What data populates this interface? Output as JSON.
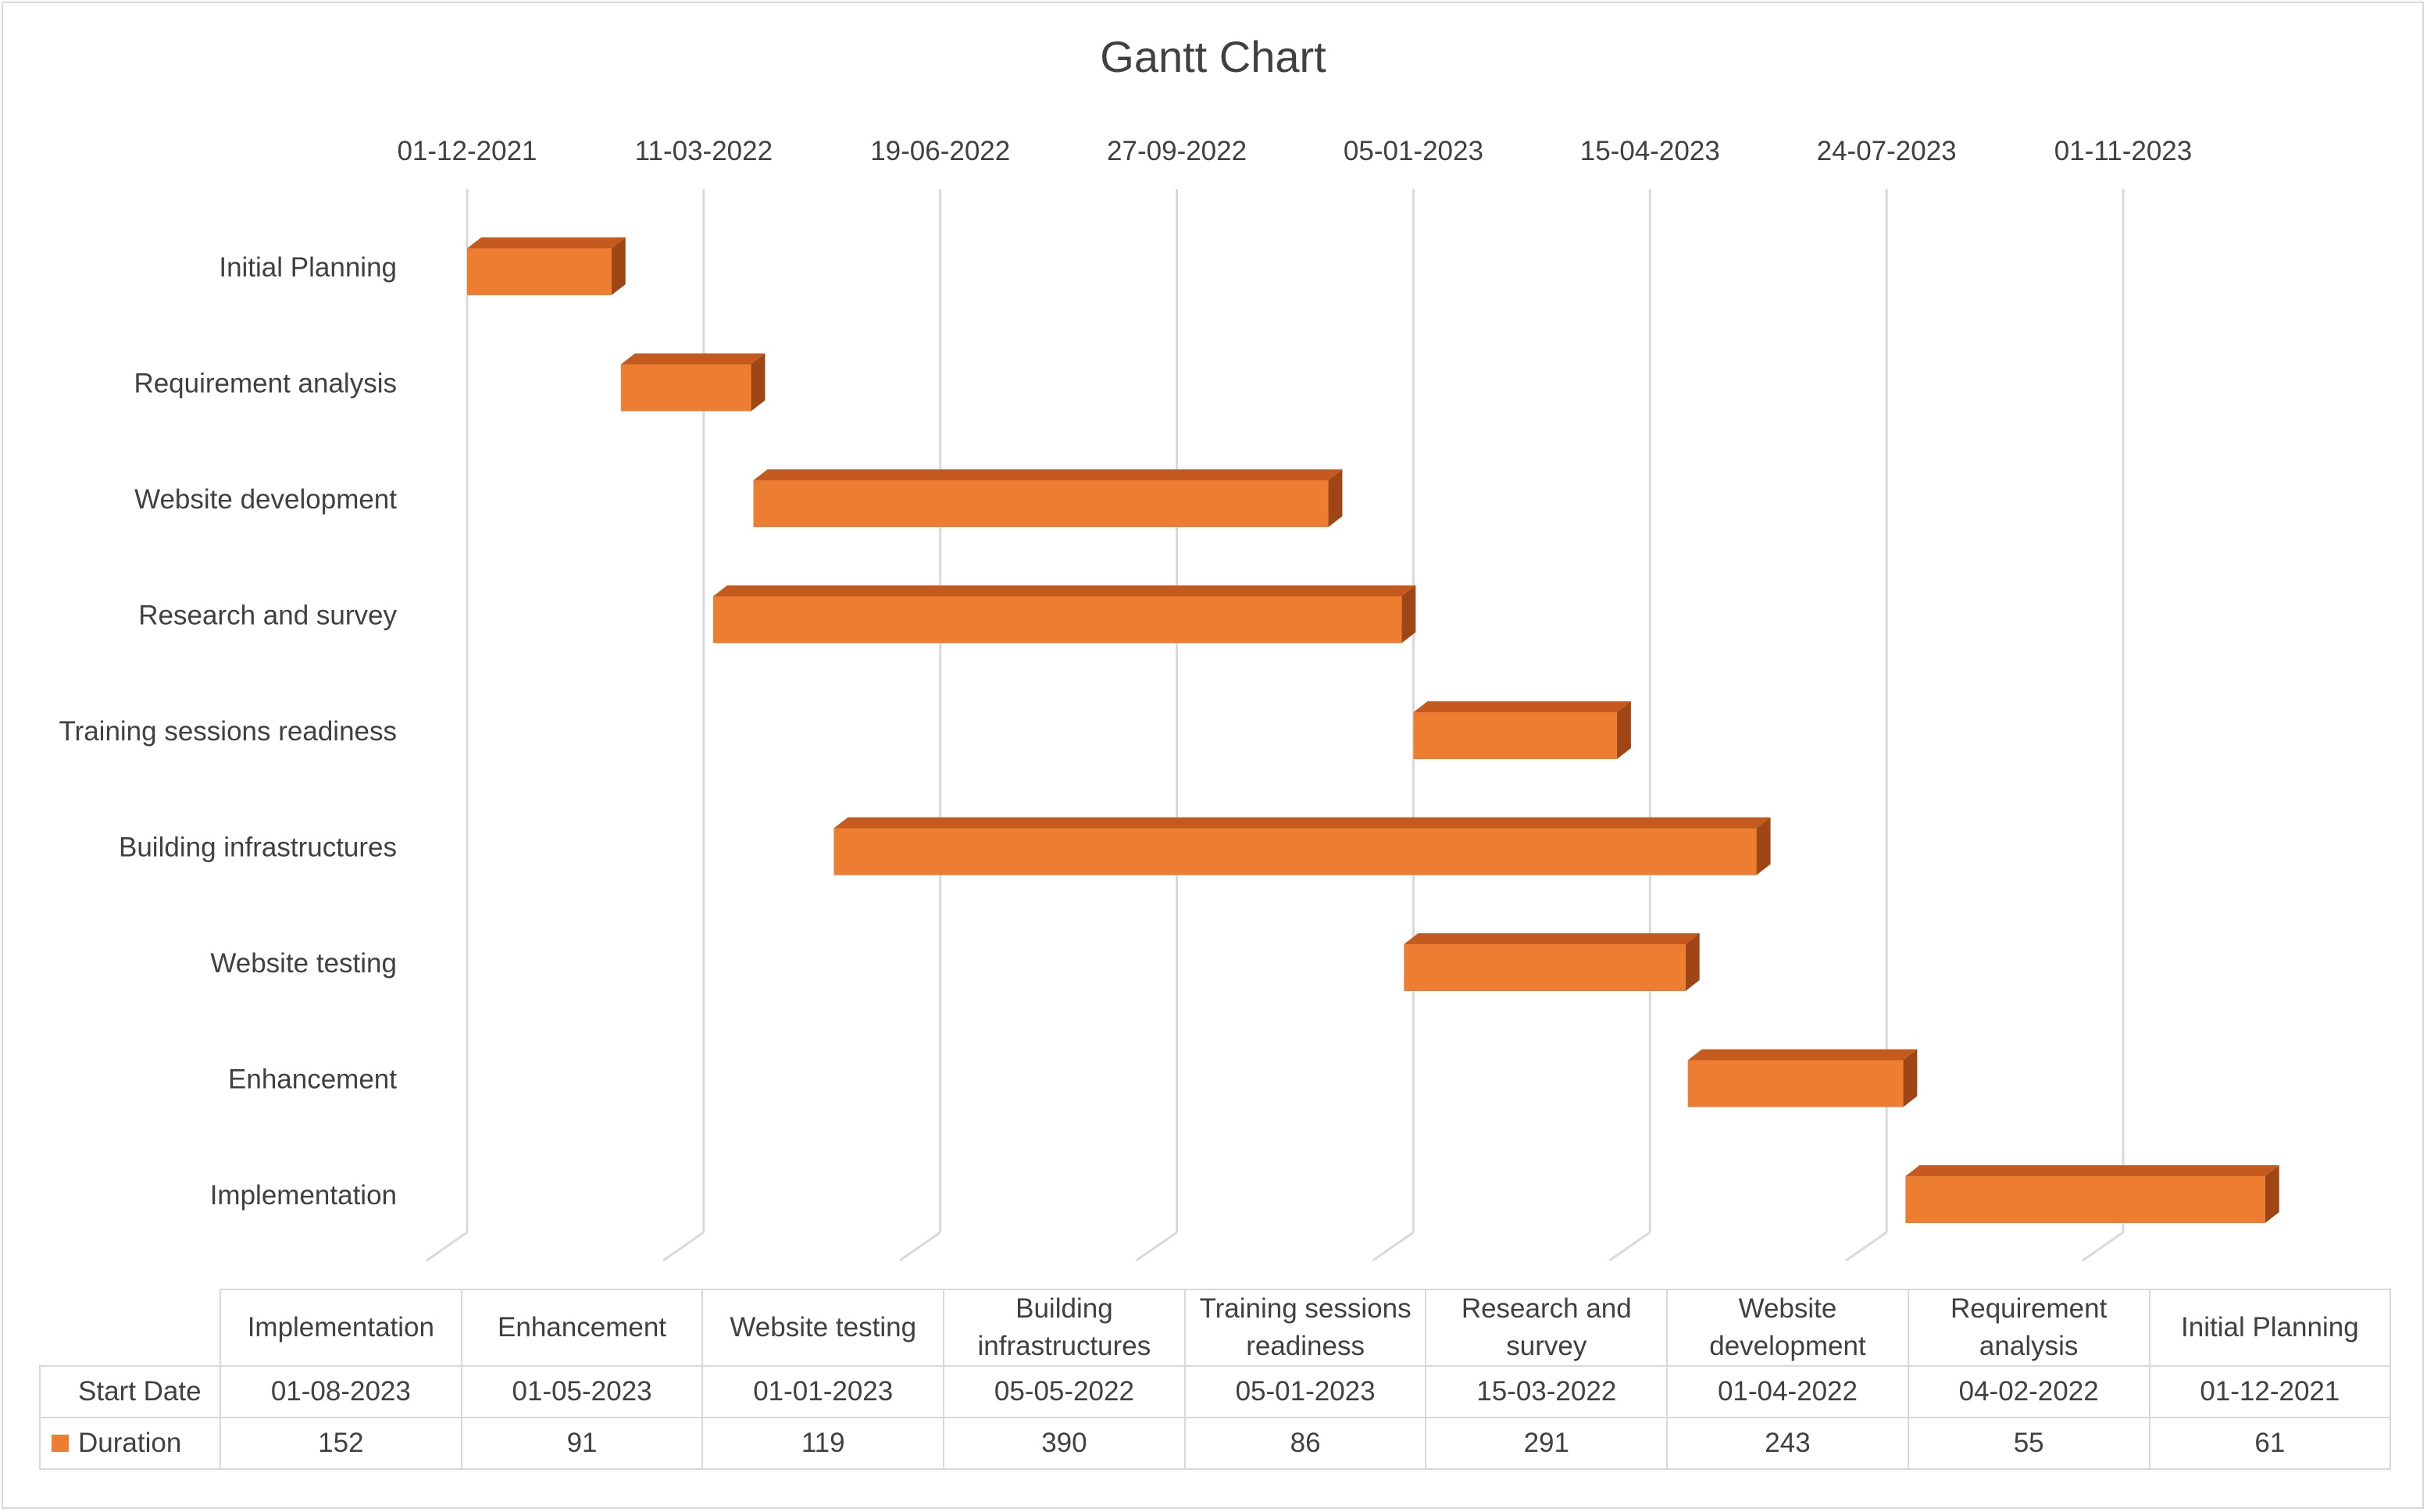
{
  "chart_data": {
    "type": "bar",
    "orientation": "horizontal-gantt",
    "title": "Gantt Chart",
    "x_ticks": [
      "01-12-2021",
      "11-03-2022",
      "19-06-2022",
      "27-09-2022",
      "05-01-2023",
      "15-04-2023",
      "24-07-2023",
      "01-11-2023"
    ],
    "xlim": [
      "2021-12-01",
      "2023-11-01"
    ],
    "y_order": [
      "Initial Planning",
      "Requirement analysis",
      "Website development",
      "Research and survey",
      "Training sessions readiness",
      "Building infrastructures",
      "Website testing",
      "Enhancement",
      "Implementation"
    ],
    "grid": true,
    "series": [
      {
        "name": "Duration",
        "color": "#ed7d31",
        "tasks": [
          {
            "task": "Initial Planning",
            "start": "2021-12-01",
            "duration": 61
          },
          {
            "task": "Requirement analysis",
            "start": "2022-02-04",
            "duration": 55
          },
          {
            "task": "Website development",
            "start": "2022-04-01",
            "duration": 243
          },
          {
            "task": "Research and survey",
            "start": "2022-03-15",
            "duration": 291
          },
          {
            "task": "Training sessions readiness",
            "start": "2023-01-05",
            "duration": 86
          },
          {
            "task": "Building infrastructures",
            "start": "2022-05-05",
            "duration": 390
          },
          {
            "task": "Website testing",
            "start": "2023-01-01",
            "duration": 119
          },
          {
            "task": "Enhancement",
            "start": "2023-05-01",
            "duration": 91
          },
          {
            "task": "Implementation",
            "start": "2023-08-01",
            "duration": 152
          }
        ]
      }
    ],
    "data_table": {
      "columns": [
        "Implementation",
        "Enhancement",
        "Website testing",
        "Building infrastructures",
        "Training sessions readiness",
        "Research and survey",
        "Website development",
        "Requirement analysis",
        "Initial Planning"
      ],
      "rows": [
        {
          "label": "Start Date",
          "legend_key": false,
          "values": [
            "01-08-2023",
            "01-05-2023",
            "01-01-2023",
            "05-05-2022",
            "05-01-2023",
            "15-03-2022",
            "01-04-2022",
            "04-02-2022",
            "01-12-2021"
          ]
        },
        {
          "label": "Duration",
          "legend_key": true,
          "values": [
            "152",
            "91",
            "119",
            "390",
            "86",
            "291",
            "243",
            "55",
            "61"
          ]
        }
      ]
    }
  }
}
